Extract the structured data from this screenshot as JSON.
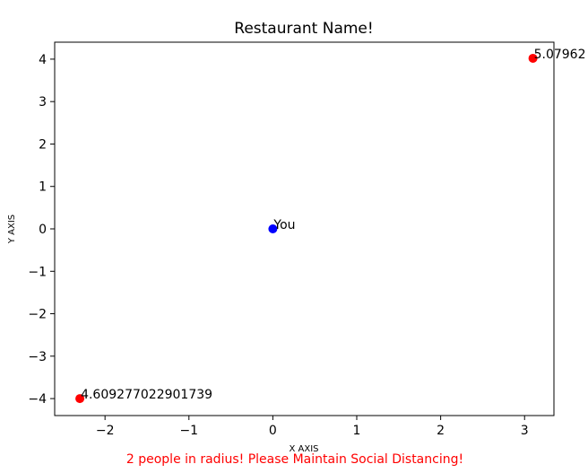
{
  "chart_data": {
    "type": "scatter",
    "title": "Restaurant Name!",
    "xlabel": "X AXIS",
    "ylabel": "Y AXIS",
    "xlim": [
      -2.6,
      3.35
    ],
    "ylim": [
      -4.4,
      4.4
    ],
    "xticks": [
      -2,
      -1,
      0,
      1,
      2,
      3
    ],
    "yticks": [
      4,
      3,
      2,
      1,
      0,
      -1,
      -2,
      -3,
      -4
    ],
    "grid": false,
    "points": [
      {
        "x": 0,
        "y": 0,
        "color": "#0000ff",
        "label": "You"
      },
      {
        "x": 3.1,
        "y": 4.02,
        "color": "#ff0000",
        "label": "5.07962"
      },
      {
        "x": -2.3,
        "y": -4.0,
        "color": "#ff0000",
        "label": "4.609277022901739"
      }
    ],
    "footer_note": "2 people in radius! Please Maintain Social Distancing!",
    "footer_color": "#ff0000"
  }
}
